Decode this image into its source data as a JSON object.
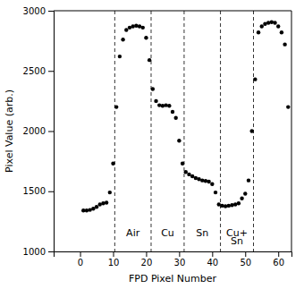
{
  "chart_data": {
    "type": "scatter",
    "x": [
      1,
      2,
      3,
      4,
      5,
      6,
      7,
      8,
      9,
      10,
      11,
      12,
      13,
      14,
      15,
      16,
      17,
      18,
      19,
      20,
      21,
      22,
      23,
      24,
      25,
      26,
      27,
      28,
      29,
      30,
      31,
      32,
      33,
      34,
      35,
      36,
      37,
      38,
      39,
      40,
      41,
      42,
      43,
      44,
      45,
      46,
      47,
      48,
      49,
      50,
      51,
      52,
      53,
      54,
      55,
      56,
      57,
      58,
      59,
      60,
      61,
      62,
      63
    ],
    "values": [
      1340,
      1340,
      1345,
      1355,
      1370,
      1390,
      1400,
      1405,
      1490,
      1730,
      2200,
      2620,
      2760,
      2840,
      2860,
      2870,
      2875,
      2870,
      2860,
      2775,
      2590,
      2350,
      2250,
      2215,
      2210,
      2215,
      2210,
      2160,
      2110,
      1920,
      1730,
      1660,
      1640,
      1625,
      1610,
      1600,
      1590,
      1585,
      1580,
      1560,
      1490,
      1390,
      1380,
      1375,
      1380,
      1385,
      1390,
      1400,
      1440,
      1480,
      1590,
      2000,
      2430,
      2820,
      2870,
      2890,
      2900,
      2905,
      2900,
      2870,
      2820,
      2720,
      2200
    ],
    "color": "black",
    "vlines": [
      10.5,
      21.5,
      31.5,
      42.5,
      52.5
    ],
    "annotations": [
      {
        "text": "Air",
        "x": 16.0,
        "y": 1150
      },
      {
        "text": "Cu",
        "x": 26.5,
        "y": 1150
      },
      {
        "text": "Sn",
        "x": 37.0,
        "y": 1150
      },
      {
        "text": "Cu+",
        "x": 47.5,
        "y": 1150
      },
      {
        "text": "Sn",
        "x": 47.5,
        "y": 1080
      }
    ],
    "x_label": "FPD Pixel Number",
    "y_label": "Pixel Value (arb.)",
    "xlim": [
      -8,
      64
    ],
    "ylim": [
      1000,
      3000
    ],
    "xticks": [
      0,
      10,
      20,
      30,
      40,
      50,
      60
    ],
    "yticks": [
      1000,
      1500,
      2000,
      2500,
      3000
    ],
    "grid": false
  }
}
